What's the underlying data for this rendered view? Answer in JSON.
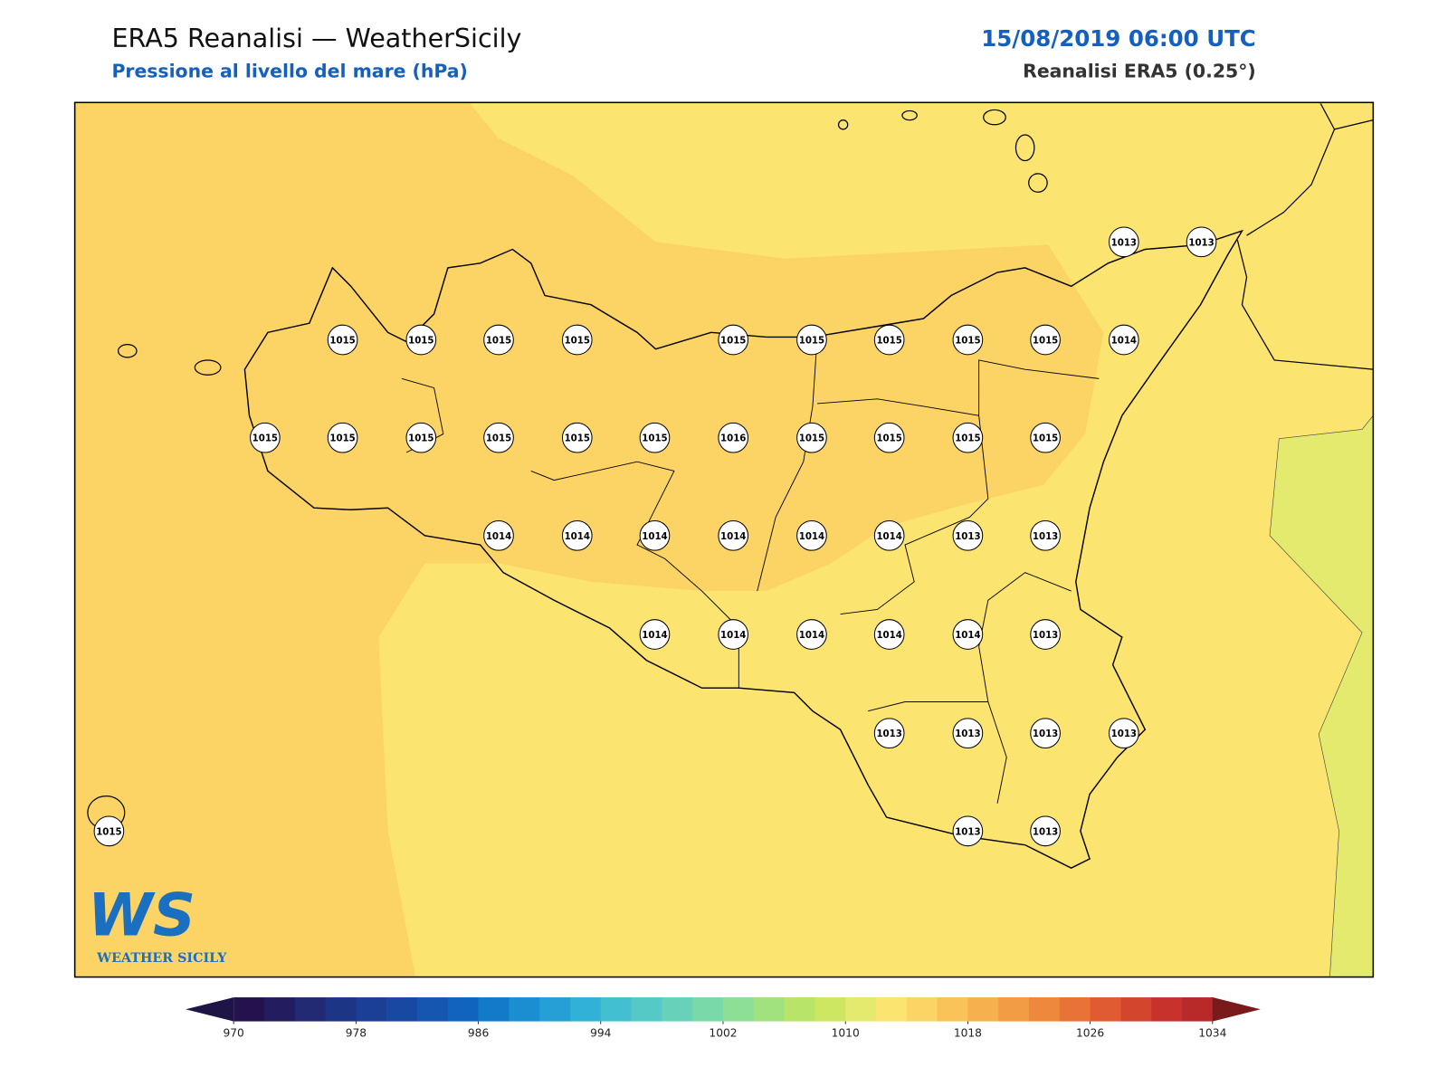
{
  "header": {
    "title": "ERA5 Reanalisi — WeatherSicily",
    "subtitle": "Pressione al livello del mare (hPa)",
    "datetime": "15/08/2019 06:00 UTC",
    "source": "Reanalisi ERA5 (0.25°)"
  },
  "stations": [
    1013,
    1013,
    1015,
    1015,
    1015,
    1015,
    1015,
    1015,
    1015,
    1015,
    1015,
    1014,
    1015,
    1015,
    1015,
    1015,
    1015,
    1015,
    1016,
    1015,
    1015,
    1015,
    1015,
    1014,
    1014,
    1014,
    1014,
    1014,
    1014,
    1013,
    1013,
    1014,
    1014,
    1014,
    1014,
    1014,
    1013,
    1013,
    1013,
    1013,
    1013,
    1015,
    1013,
    1013
  ],
  "colorbar": {
    "min": 970,
    "max": 1034,
    "step": 2,
    "ticks": [
      970,
      978,
      986,
      994,
      1002,
      1010,
      1018,
      1026,
      1034
    ],
    "colors": [
      "#24124f",
      "#231c5e",
      "#212a73",
      "#1d3585",
      "#1a3f95",
      "#1749a3",
      "#1456b0",
      "#1164bd",
      "#127bc9",
      "#1a8ed1",
      "#259fd5",
      "#32b1d6",
      "#42bfd0",
      "#55c9c6",
      "#67d2b9",
      "#79d9a8",
      "#8cdf95",
      "#a2e27e",
      "#b8e46a",
      "#cde763",
      "#e4ea6e",
      "#fbe46f",
      "#fcd465",
      "#f9c35a",
      "#f6b04e",
      "#f29c44",
      "#ee883c",
      "#e97236",
      "#e05b31",
      "#d4452e",
      "#c7332c",
      "#b82a2a"
    ],
    "under_color": "#1e1446",
    "over_color": "#7a1a1a"
  },
  "logo": {
    "letters": "WS",
    "text": "WEATHER SICILY"
  }
}
